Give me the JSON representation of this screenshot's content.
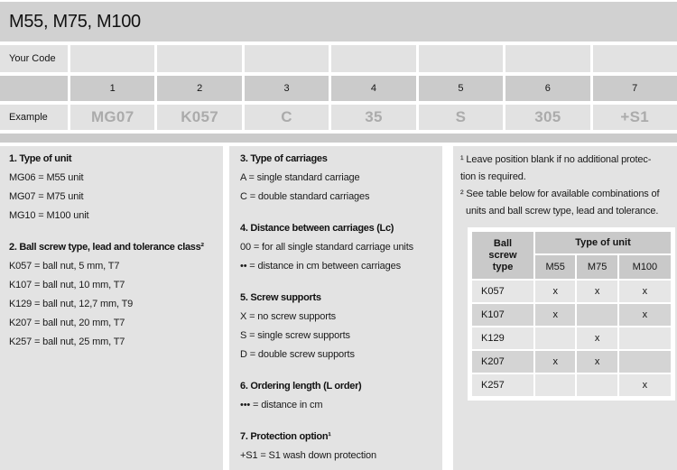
{
  "title": "M55, M75, M100",
  "code_table": {
    "your_code_label": "Your Code",
    "example_label": "Example",
    "positions": [
      "1",
      "2",
      "3",
      "4",
      "5",
      "6",
      "7"
    ],
    "examples": [
      "MG07",
      "K057",
      "C",
      "35",
      "S",
      "305",
      "+S1"
    ]
  },
  "left_sections": [
    {
      "heading": "1. Type of unit",
      "lines": [
        "MG06 = M55 unit",
        "MG07 = M75 unit",
        "MG10 = M100 unit"
      ]
    },
    {
      "heading": "2. Ball screw type, lead and tolerance class²",
      "lines": [
        "K057 = ball nut, 5 mm, T7",
        "K107 = ball nut, 10 mm, T7",
        "K129 = ball nut, 12,7 mm, T9",
        "K207 = ball nut, 20 mm, T7",
        "K257 = ball nut, 25 mm, T7"
      ]
    }
  ],
  "middle_sections": [
    {
      "heading": "3. Type of carriages",
      "lines": [
        "A = single standard carriage",
        "C = double standard carriages"
      ]
    },
    {
      "heading": "4. Distance between carriages (Lc)",
      "lines": [
        "00  = for all single standard carriage units",
        "••  = distance in cm between carriages"
      ]
    },
    {
      "heading": "5. Screw supports",
      "lines": [
        "X = no screw supports",
        "S = single screw supports",
        "D = double screw supports"
      ]
    },
    {
      "heading": "6. Ordering length (L order)",
      "lines": [
        "••• = distance in cm"
      ]
    },
    {
      "heading": "7. Protection option¹",
      "lines": [
        "+S1 = S1 wash down protection"
      ]
    }
  ],
  "footnotes": {
    "fn1_line1": "¹ Leave position blank if no additional protec-",
    "fn1_line2": "tion is required.",
    "fn2_line1": "² See table below for available combinations of",
    "fn2_line2": "units and ball screw type, lead and tolerance."
  },
  "combo_table": {
    "ball_screw_header": "Ball screw type",
    "type_of_unit_header": "Type of unit",
    "unit_columns": [
      "M55",
      "M75",
      "M100"
    ],
    "rows": [
      {
        "type": "K057",
        "m55": "x",
        "m75": "x",
        "m100": "x"
      },
      {
        "type": "K107",
        "m55": "x",
        "m75": "",
        "m100": "x"
      },
      {
        "type": "K129",
        "m55": "",
        "m75": "x",
        "m100": ""
      },
      {
        "type": "K207",
        "m55": "x",
        "m75": "x",
        "m100": ""
      },
      {
        "type": "K257",
        "m55": "",
        "m75": "",
        "m100": "x"
      }
    ]
  },
  "colors": {
    "title_bar": "#d1d1d1",
    "light_cell": "#e2e2e2",
    "mid_cell": "#cbcbcb",
    "panel_bg": "#e3e3e3",
    "combo_header": "#c9c9c9",
    "combo_row_dark": "#d4d4d4",
    "combo_row_light": "#e6e6e6",
    "example_text": "#ababab"
  }
}
